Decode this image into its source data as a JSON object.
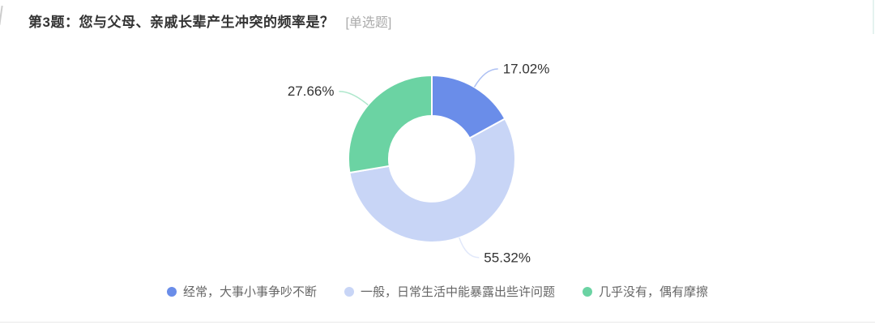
{
  "page": {
    "question_title": "第3题：您与父母、亲戚长辈产生冲突的频率是？",
    "question_tag": "[单选题]"
  },
  "chart_data": {
    "type": "pie",
    "subtype": "donut",
    "title": "",
    "categories": [
      "经常，大事小事争吵不断",
      "一般，日常生活中能暴露出些许问题",
      "几乎没有，偶有摩擦"
    ],
    "values": [
      17.02,
      55.32,
      27.66
    ],
    "labels": [
      "17.02%",
      "55.32%",
      "27.66%"
    ],
    "colors": [
      "#6a8de9",
      "#c8d5f6",
      "#6bd3a3"
    ],
    "label_text_color": "#333333",
    "legend_text_color": "#666666",
    "legend_position": "bottom",
    "start_angle_deg": 0,
    "clockwise": true,
    "inner_radius_ratio": 0.51,
    "grid": false
  }
}
